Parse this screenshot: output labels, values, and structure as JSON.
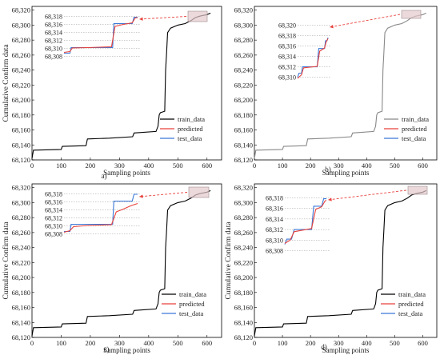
{
  "chart_data": [
    {
      "type": "line",
      "label": "a)",
      "xlabel": "Sampling points",
      "ylabel": "Cumulative Confirm data",
      "xlim": [
        0,
        650
      ],
      "ylim": [
        68120,
        68325
      ],
      "xticks": [
        "0",
        "100",
        "200",
        "300",
        "400",
        "500",
        "600"
      ],
      "yticks": [
        "68,120",
        "68,140",
        "68,160",
        "68,180",
        "68,200",
        "68,220",
        "68,240",
        "68,260",
        "68,280",
        "68,300",
        "68,320"
      ],
      "legend_position": "bottom-right",
      "series": [
        {
          "name": "train_data",
          "color": "#000000",
          "points": [
            [
              0,
              68122
            ],
            [
              5,
              68133
            ],
            [
              100,
              68134
            ],
            [
              104,
              68138
            ],
            [
              185,
              68139
            ],
            [
              190,
              68148
            ],
            [
              265,
              68149
            ],
            [
              345,
              68151
            ],
            [
              350,
              68156
            ],
            [
              425,
              68158
            ],
            [
              432,
              68165
            ],
            [
              436,
              68180
            ],
            [
              440,
              68183
            ],
            [
              455,
              68185
            ],
            [
              458,
              68240
            ],
            [
              461,
              68260
            ],
            [
              465,
              68290
            ],
            [
              475,
              68296
            ],
            [
              500,
              68300
            ],
            [
              525,
              68302
            ],
            [
              545,
              68306
            ],
            [
              560,
              68310
            ],
            [
              575,
              68312
            ],
            [
              600,
              68314
            ],
            [
              612,
              68316
            ]
          ]
        },
        {
          "name": "predicted",
          "color": "#e8413c",
          "points": []
        },
        {
          "name": "test_data",
          "color": "#3a78d8",
          "points": []
        }
      ],
      "inset": {
        "yticks": [
          "68,318",
          "68,316",
          "68,314",
          "68,312",
          "68,310",
          "68,308"
        ],
        "series": [
          {
            "name": "test_data",
            "color": "#3a78d8",
            "points": [
              [
                0,
                68308.8
              ],
              [
                10,
                68308.8
              ],
              [
                12,
                68310.2
              ],
              [
                40,
                68310.2
              ],
              [
                82,
                68310.2
              ],
              [
                84,
                68316.2
              ],
              [
                90,
                68316.2
              ],
              [
                115,
                68316.2
              ],
              [
                118,
                68317.8
              ],
              [
                124,
                68317.8
              ]
            ]
          },
          {
            "name": "predicted",
            "color": "#e8413c",
            "points": [
              [
                0,
                68309
              ],
              [
                10,
                68309.2
              ],
              [
                14,
                68310.1
              ],
              [
                40,
                68310.2
              ],
              [
                80,
                68310.4
              ],
              [
                86,
                68315.5
              ],
              [
                100,
                68316
              ],
              [
                115,
                68316.4
              ],
              [
                120,
                68317.6
              ],
              [
                124,
                68317.7
              ]
            ]
          }
        ]
      }
    },
    {
      "type": "line",
      "label": "b)",
      "xlabel": "Sampling points",
      "ylabel": "",
      "xlim": [
        0,
        650
      ],
      "ylim": [
        68120,
        68325
      ],
      "xticks": [
        "0",
        "100",
        "200",
        "300",
        "400",
        "500",
        "600"
      ],
      "yticks": [
        "68,120",
        "68,140",
        "68,160",
        "68,180",
        "68,200",
        "68,220",
        "68,240",
        "68,260",
        "68,280",
        "68,300",
        "68,320"
      ],
      "legend_position": "bottom-right",
      "series": [
        {
          "name": "train_data",
          "color": "#888888",
          "points": [
            [
              0,
              68122
            ],
            [
              5,
              68133
            ],
            [
              100,
              68134
            ],
            [
              104,
              68138
            ],
            [
              185,
              68139
            ],
            [
              190,
              68148
            ],
            [
              265,
              68149
            ],
            [
              345,
              68151
            ],
            [
              350,
              68156
            ],
            [
              425,
              68158
            ],
            [
              432,
              68165
            ],
            [
              436,
              68180
            ],
            [
              440,
              68183
            ],
            [
              455,
              68185
            ],
            [
              458,
              68240
            ],
            [
              461,
              68260
            ],
            [
              465,
              68290
            ],
            [
              475,
              68296
            ],
            [
              500,
              68300
            ],
            [
              525,
              68302
            ],
            [
              545,
              68306
            ],
            [
              560,
              68310
            ],
            [
              575,
              68312
            ],
            [
              600,
              68314
            ],
            [
              612,
              68316
            ]
          ]
        },
        {
          "name": "predicted",
          "color": "#e8413c",
          "points": []
        },
        {
          "name": "test_data",
          "color": "#3a78d8",
          "points": []
        }
      ],
      "inset": {
        "yticks": [
          "68,320",
          "68,318",
          "68,316",
          "68,314",
          "68,312",
          "68,310"
        ],
        "series": [
          {
            "name": "test_data",
            "color": "#3a78d8",
            "points": [
              [
                0,
                68310
              ],
              [
                3,
                68310.8
              ],
              [
                8,
                68310.8
              ],
              [
                10,
                68312
              ],
              [
                40,
                68312
              ],
              [
                43,
                68315.5
              ],
              [
                55,
                68315.5
              ],
              [
                57,
                68317
              ],
              [
                60,
                68317
              ],
              [
                62,
                68317.6
              ]
            ]
          },
          {
            "name": "predicted",
            "color": "#e8413c",
            "points": [
              [
                0,
                68309.8
              ],
              [
                8,
                68310.5
              ],
              [
                12,
                68311.8
              ],
              [
                40,
                68312.1
              ],
              [
                45,
                68315
              ],
              [
                55,
                68315.6
              ],
              [
                58,
                68316.7
              ],
              [
                62,
                68317.4
              ]
            ]
          }
        ]
      }
    },
    {
      "type": "line",
      "label": "c)",
      "xlabel": "Sampling points",
      "ylabel": "Cumulative Confirm data",
      "xlim": [
        0,
        650
      ],
      "ylim": [
        68120,
        68325
      ],
      "xticks": [
        "0",
        "100",
        "200",
        "300",
        "400",
        "500",
        "600"
      ],
      "yticks": [
        "68,120",
        "68,140",
        "68,160",
        "68,180",
        "68,200",
        "68,220",
        "68,240",
        "68,260",
        "68,280",
        "68,300",
        "68,320"
      ],
      "legend_position": "bottom-right",
      "series": [
        {
          "name": "train_data",
          "color": "#000000",
          "points": [
            [
              0,
              68122
            ],
            [
              5,
              68133
            ],
            [
              100,
              68134
            ],
            [
              104,
              68138
            ],
            [
              185,
              68139
            ],
            [
              190,
              68148
            ],
            [
              265,
              68149
            ],
            [
              345,
              68151
            ],
            [
              350,
              68156
            ],
            [
              425,
              68158
            ],
            [
              432,
              68165
            ],
            [
              436,
              68180
            ],
            [
              440,
              68183
            ],
            [
              455,
              68185
            ],
            [
              458,
              68240
            ],
            [
              461,
              68260
            ],
            [
              465,
              68290
            ],
            [
              475,
              68296
            ],
            [
              500,
              68300
            ],
            [
              525,
              68302
            ],
            [
              545,
              68306
            ],
            [
              560,
              68310
            ],
            [
              575,
              68312
            ],
            [
              600,
              68314
            ],
            [
              612,
              68316
            ]
          ]
        },
        {
          "name": "predicted",
          "color": "#e8413c",
          "points": []
        },
        {
          "name": "test_data",
          "color": "#3a78d8",
          "points": []
        }
      ],
      "inset": {
        "yticks": [
          "68,318",
          "68,316",
          "68,314",
          "68,312",
          "68,310",
          "68,308"
        ],
        "series": [
          {
            "name": "test_data",
            "color": "#3a78d8",
            "points": [
              [
                0,
                68308.6
              ],
              [
                10,
                68308.6
              ],
              [
                12,
                68310.4
              ],
              [
                40,
                68310.4
              ],
              [
                82,
                68310.4
              ],
              [
                84,
                68316.2
              ],
              [
                115,
                68316.2
              ],
              [
                118,
                68317.9
              ],
              [
                124,
                68317.9
              ]
            ]
          },
          {
            "name": "predicted",
            "color": "#e8413c",
            "points": [
              [
                0,
                68308.4
              ],
              [
                10,
                68308.8
              ],
              [
                16,
                68309.8
              ],
              [
                40,
                68310.1
              ],
              [
                80,
                68310.3
              ],
              [
                88,
                68313.5
              ],
              [
                100,
                68314.2
              ],
              [
                112,
                68315
              ],
              [
                124,
                68315.6
              ]
            ]
          }
        ]
      }
    },
    {
      "type": "line",
      "label": "d)",
      "xlabel": "Sampling points",
      "ylabel": "Cumulative Confirm data",
      "xlim": [
        0,
        650
      ],
      "ylim": [
        68120,
        68325
      ],
      "xticks": [
        "0",
        "100",
        "200",
        "300",
        "400",
        "500",
        "600"
      ],
      "yticks": [
        "68,120",
        "68,140",
        "68,160",
        "68,180",
        "68,200",
        "68,220",
        "68,240",
        "68,260",
        "68,280",
        "68,300",
        "68,320"
      ],
      "legend_position": "bottom-right",
      "series": [
        {
          "name": "train_data",
          "color": "#000000",
          "points": [
            [
              0,
              68122
            ],
            [
              5,
              68133
            ],
            [
              100,
              68134
            ],
            [
              104,
              68138
            ],
            [
              185,
              68139
            ],
            [
              190,
              68148
            ],
            [
              265,
              68149
            ],
            [
              345,
              68151
            ],
            [
              350,
              68156
            ],
            [
              425,
              68158
            ],
            [
              432,
              68165
            ],
            [
              436,
              68180
            ],
            [
              440,
              68183
            ],
            [
              455,
              68185
            ],
            [
              458,
              68240
            ],
            [
              461,
              68260
            ],
            [
              465,
              68290
            ],
            [
              475,
              68296
            ],
            [
              500,
              68300
            ],
            [
              525,
              68302
            ],
            [
              545,
              68306
            ],
            [
              560,
              68310
            ],
            [
              575,
              68312
            ],
            [
              600,
              68314
            ],
            [
              612,
              68316
            ]
          ]
        },
        {
          "name": "predicted",
          "color": "#e8413c",
          "points": []
        },
        {
          "name": "test_data",
          "color": "#3a78d8",
          "points": []
        }
      ],
      "inset": {
        "yticks": [
          "68,318",
          "68,316",
          "68,314",
          "68,312",
          "68,310",
          "68,308"
        ],
        "series": [
          {
            "name": "test_data",
            "color": "#3a78d8",
            "points": [
              [
                0,
                68309.2
              ],
              [
                3,
                68310.2
              ],
              [
                10,
                68310.2
              ],
              [
                14,
                68312
              ],
              [
                40,
                68312
              ],
              [
                43,
                68316.4
              ],
              [
                55,
                68316.4
              ],
              [
                58,
                68317.8
              ],
              [
                62,
                68317.8
              ]
            ]
          },
          {
            "name": "predicted",
            "color": "#e8413c",
            "points": [
              [
                0,
                68309.4
              ],
              [
                8,
                68310
              ],
              [
                14,
                68311.6
              ],
              [
                40,
                68312.2
              ],
              [
                46,
                68315.8
              ],
              [
                55,
                68316.3
              ],
              [
                60,
                68317.4
              ],
              [
                62,
                68317.5
              ]
            ]
          }
        ]
      }
    }
  ]
}
